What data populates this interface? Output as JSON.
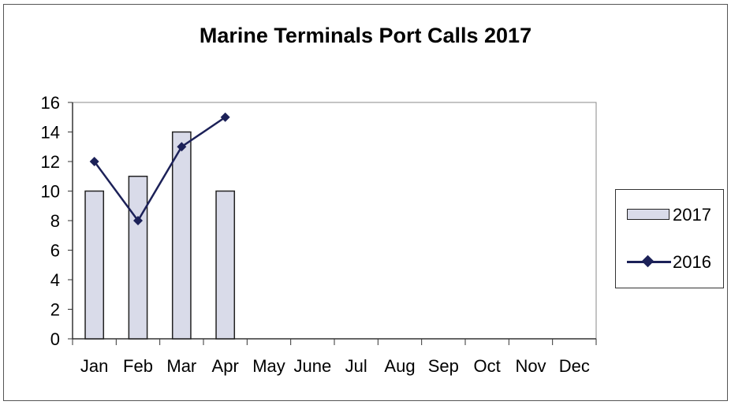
{
  "chart_data": {
    "type": "bar",
    "title": "Marine Terminals Port Calls 2017",
    "categories": [
      "Jan",
      "Feb",
      "Mar",
      "Apr",
      "May",
      "June",
      "Jul",
      "Aug",
      "Sep",
      "Oct",
      "Nov",
      "Dec"
    ],
    "series": [
      {
        "name": "2017",
        "type": "bar",
        "values": [
          10,
          11,
          14,
          10,
          null,
          null,
          null,
          null,
          null,
          null,
          null,
          null
        ]
      },
      {
        "name": "2016",
        "type": "line",
        "values": [
          12,
          8,
          13,
          15,
          null,
          null,
          null,
          null,
          null,
          null,
          null,
          null
        ]
      }
    ],
    "ylim": [
      0,
      16
    ],
    "yticks": [
      0,
      2,
      4,
      6,
      8,
      10,
      12,
      14,
      16
    ],
    "grid": false,
    "legend_position": "right",
    "colors": {
      "bar_fill": "#d9dbe9",
      "bar_stroke": "#222222",
      "line": "#1c2158"
    }
  }
}
